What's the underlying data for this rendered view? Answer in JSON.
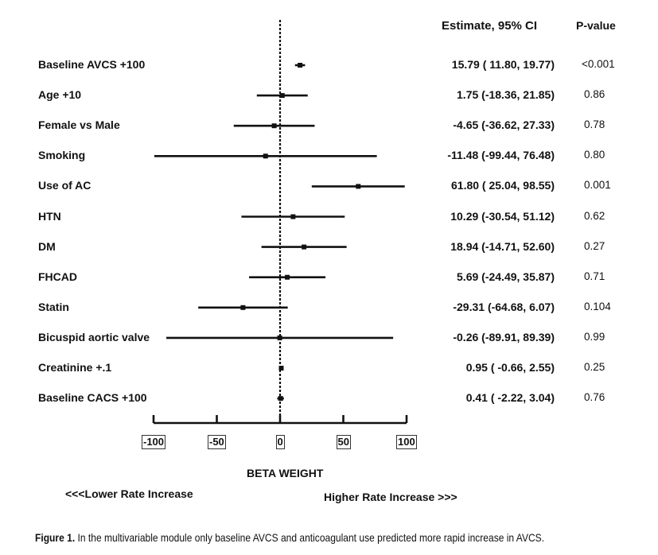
{
  "headers": {
    "estimate": "Estimate, 95% CI",
    "pvalue": "P-value"
  },
  "chart_data": {
    "type": "forest",
    "xlabel": "BETA WEIGHT",
    "xlim": [
      -100,
      100
    ],
    "xticks": [
      "-100",
      "-50",
      "0",
      "50",
      "100"
    ],
    "left_note": "<<<Lower Rate Increase",
    "right_note": "Higher Rate Increase >>>",
    "rows": [
      {
        "label": "Baseline AVCS +100",
        "estimate": 15.79,
        "lower": 11.8,
        "upper": 19.77,
        "text": "15.79 ( 11.80, 19.77)",
        "p": "<0.001"
      },
      {
        "label": "Age +10",
        "estimate": 1.75,
        "lower": -18.36,
        "upper": 21.85,
        "text": "1.75 (-18.36, 21.85)",
        "p": "0.86"
      },
      {
        "label": "Female vs Male",
        "estimate": -4.65,
        "lower": -36.62,
        "upper": 27.33,
        "text": "-4.65 (-36.62, 27.33)",
        "p": "0.78"
      },
      {
        "label": "Smoking",
        "estimate": -11.48,
        "lower": -99.44,
        "upper": 76.48,
        "text": "-11.48 (-99.44, 76.48)",
        "p": "0.80"
      },
      {
        "label": "Use of AC",
        "estimate": 61.8,
        "lower": 25.04,
        "upper": 98.55,
        "text": "61.80 ( 25.04, 98.55)",
        "p": "0.001"
      },
      {
        "label": "HTN",
        "estimate": 10.29,
        "lower": -30.54,
        "upper": 51.12,
        "text": "10.29 (-30.54, 51.12)",
        "p": "0.62"
      },
      {
        "label": "DM",
        "estimate": 18.94,
        "lower": -14.71,
        "upper": 52.6,
        "text": "18.94 (-14.71, 52.60)",
        "p": "0.27"
      },
      {
        "label": "FHCAD",
        "estimate": 5.69,
        "lower": -24.49,
        "upper": 35.87,
        "text": "5.69 (-24.49, 35.87)",
        "p": "0.71"
      },
      {
        "label": "Statin",
        "estimate": -29.31,
        "lower": -64.68,
        "upper": 6.07,
        "text": "-29.31 (-64.68,  6.07)",
        "p": "0.104"
      },
      {
        "label": "Bicuspid aortic valve",
        "estimate": -0.26,
        "lower": -89.91,
        "upper": 89.39,
        "text": "-0.26 (-89.91, 89.39)",
        "p": "0.99"
      },
      {
        "label": "Creatinine +.1",
        "estimate": 0.95,
        "lower": -0.66,
        "upper": 2.55,
        "text": "0.95 ( -0.66,  2.55)",
        "p": "0.25"
      },
      {
        "label": "Baseline CACS +100",
        "estimate": 0.41,
        "lower": -2.22,
        "upper": 3.04,
        "text": "0.41 ( -2.22,  3.04)",
        "p": "0.76"
      }
    ]
  },
  "caption": {
    "label": "Figure 1.",
    "text": " In the multivariable module only baseline AVCS and anticoagulant use predicted more rapid increase in AVCS."
  }
}
